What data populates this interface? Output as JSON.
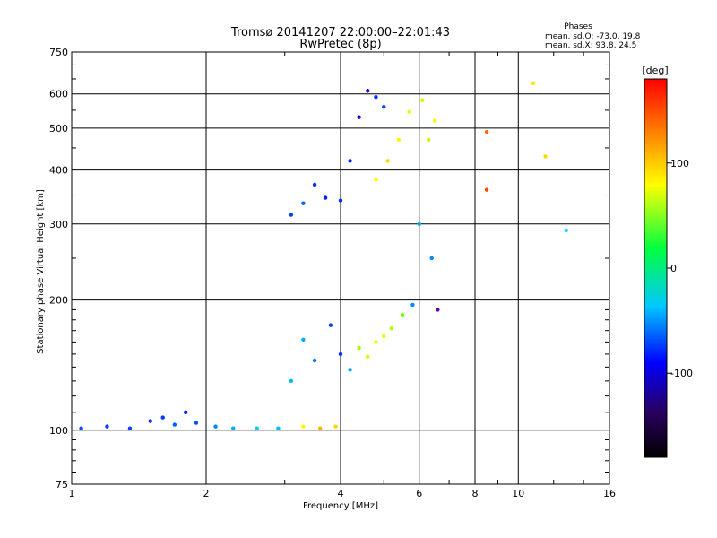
{
  "chart_data": {
    "type": "scatter",
    "title": "Tromsø 20141207 22:00:00–22:01:43",
    "subtitle": "RwPretec (8p)",
    "xlabel": "Frequency [MHz]",
    "ylabel": "Stationary phase Virtual Height [km]",
    "x_scale": "log",
    "y_scale": "log",
    "xlim": [
      1,
      16
    ],
    "ylim": [
      75,
      750
    ],
    "x_ticks": [
      1,
      2,
      4,
      6,
      8,
      10,
      16
    ],
    "x_tick_labels": [
      "1",
      "2",
      "4",
      "6",
      "8",
      "10",
      "16"
    ],
    "y_ticks": [
      75,
      100,
      200,
      300,
      400,
      500,
      600,
      750
    ],
    "y_tick_labels": [
      "75",
      "100",
      "200",
      "300",
      "400",
      "500",
      "600",
      "750"
    ],
    "grid": true,
    "stats": {
      "title": "Phases",
      "line1": "mean, sd,O:  -73.0, 19.8",
      "line2": "mean, sd,X:  93.8, 24.5"
    },
    "colorbar": {
      "label": "[deg]",
      "range": [
        -180,
        180
      ],
      "ticks": [
        100,
        0,
        -100
      ],
      "tick_labels": [
        "100",
        "0",
        "-100"
      ],
      "colormap": "rainbow"
    },
    "series": [
      {
        "values": [
          [
            1.05,
            101,
            -85
          ],
          [
            1.2,
            102,
            -90
          ],
          [
            1.35,
            101,
            -88
          ],
          [
            1.5,
            105,
            -95
          ],
          [
            1.6,
            107,
            -92
          ],
          [
            1.7,
            103,
            -80
          ],
          [
            1.8,
            110,
            -100
          ],
          [
            1.9,
            104,
            -85
          ],
          [
            2.1,
            102,
            -70
          ],
          [
            2.3,
            101,
            -60
          ],
          [
            2.6,
            101,
            -50
          ],
          [
            2.9,
            101,
            -55
          ],
          [
            3.3,
            102,
            110
          ],
          [
            3.6,
            101,
            130
          ],
          [
            3.9,
            102,
            120
          ],
          [
            3.1,
            130,
            -55
          ],
          [
            3.3,
            162,
            -60
          ],
          [
            3.5,
            145,
            -75
          ],
          [
            3.8,
            175,
            -90
          ],
          [
            4.0,
            150,
            -95
          ],
          [
            4.2,
            138,
            -60
          ],
          [
            4.4,
            155,
            80
          ],
          [
            4.6,
            148,
            95
          ],
          [
            4.8,
            160,
            105
          ],
          [
            5.0,
            165,
            100
          ],
          [
            5.2,
            172,
            85
          ],
          [
            5.5,
            185,
            70
          ],
          [
            5.8,
            195,
            -70
          ],
          [
            3.1,
            315,
            -90
          ],
          [
            3.3,
            335,
            -80
          ],
          [
            3.5,
            370,
            -95
          ],
          [
            3.7,
            345,
            -100
          ],
          [
            4.0,
            340,
            -95
          ],
          [
            4.2,
            420,
            -100
          ],
          [
            4.4,
            530,
            -110
          ],
          [
            4.6,
            610,
            -105
          ],
          [
            4.8,
            590,
            -95
          ],
          [
            5.0,
            560,
            -90
          ],
          [
            4.8,
            380,
            110
          ],
          [
            5.1,
            420,
            120
          ],
          [
            5.4,
            470,
            110
          ],
          [
            5.7,
            545,
            100
          ],
          [
            6.1,
            580,
            95
          ],
          [
            6.3,
            470,
            90
          ],
          [
            6.5,
            520,
            110
          ],
          [
            6.0,
            300,
            -60
          ],
          [
            6.4,
            250,
            -70
          ],
          [
            6.6,
            190,
            -150
          ],
          [
            8.5,
            490,
            150
          ],
          [
            8.5,
            360,
            160
          ],
          [
            10.8,
            635,
            115
          ],
          [
            11.5,
            430,
            120
          ],
          [
            12.8,
            290,
            -45
          ]
        ]
      }
    ]
  }
}
